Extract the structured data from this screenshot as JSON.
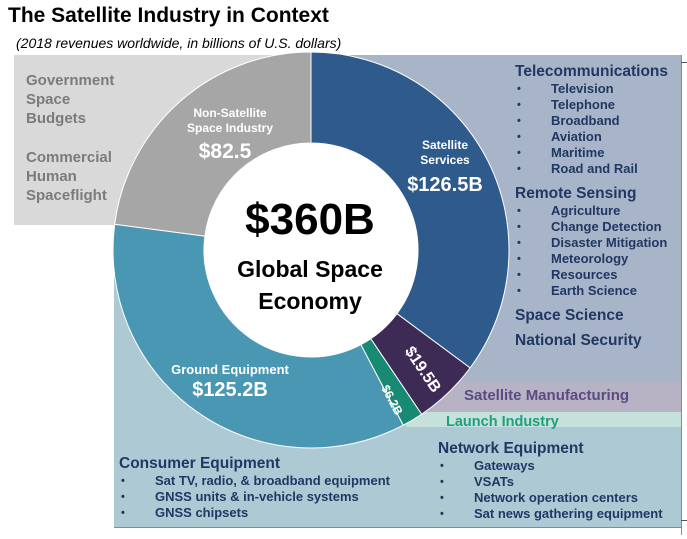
{
  "title": "The Satellite Industry in Context",
  "subtitle": "(2018 revenues worldwide, in billions of U.S. dollars)",
  "chart_data": {
    "type": "pie",
    "donut": true,
    "total_label": "$360B",
    "center_label_line1": "Global Space",
    "center_label_line2": "Economy",
    "unit": "billions of U.S. dollars",
    "slices": [
      {
        "name": "Satellite Services",
        "line1": "Satellite",
        "line2": "Services",
        "value": 126.5,
        "label": "$126.5B",
        "color": "#2e5a8c"
      },
      {
        "name": "Satellite Manufacturing",
        "value": 19.5,
        "label": "$19.5B",
        "color": "#3e2b55"
      },
      {
        "name": "Launch Industry",
        "value": 6.2,
        "label": "$6.2B",
        "color": "#188a73"
      },
      {
        "name": "Ground Equipment",
        "line1": "Ground Equipment",
        "value": 125.2,
        "label": "$125.2B",
        "color": "#4a97b3"
      },
      {
        "name": "Non-Satellite Space Industry",
        "line1": "Non-Satellite",
        "line2": "Space Industry",
        "value": 82.5,
        "label": "$82.5",
        "color": "#a6a6a6"
      }
    ]
  },
  "left_panel": {
    "government": [
      "Government",
      "Space",
      "Budgets"
    ],
    "commercial": [
      "Commercial",
      "Human",
      "Spaceflight"
    ]
  },
  "right_panel": {
    "telecom_heading": "Telecommunications",
    "telecom_items": [
      "Television",
      "Telephone",
      "Broadband",
      "Aviation",
      "Maritime",
      "Road and Rail"
    ],
    "remote_heading": "Remote Sensing",
    "remote_items": [
      "Agriculture",
      "Change Detection",
      "Disaster Mitigation",
      "Meteorology",
      "Resources",
      "Earth Science"
    ],
    "space_science": "Space Science",
    "national_security": "National Security"
  },
  "manufacturing_label": "Satellite Manufacturing",
  "launch_label": "Launch Industry",
  "consumer": {
    "heading": "Consumer Equipment",
    "items": [
      "Sat TV, radio, & broadband equipment",
      "GNSS units & in-vehicle systems",
      "GNSS chipsets"
    ]
  },
  "network": {
    "heading": "Network Equipment",
    "items": [
      "Gateways",
      "VSATs",
      "Network operation centers",
      "Sat news gathering equipment"
    ]
  }
}
